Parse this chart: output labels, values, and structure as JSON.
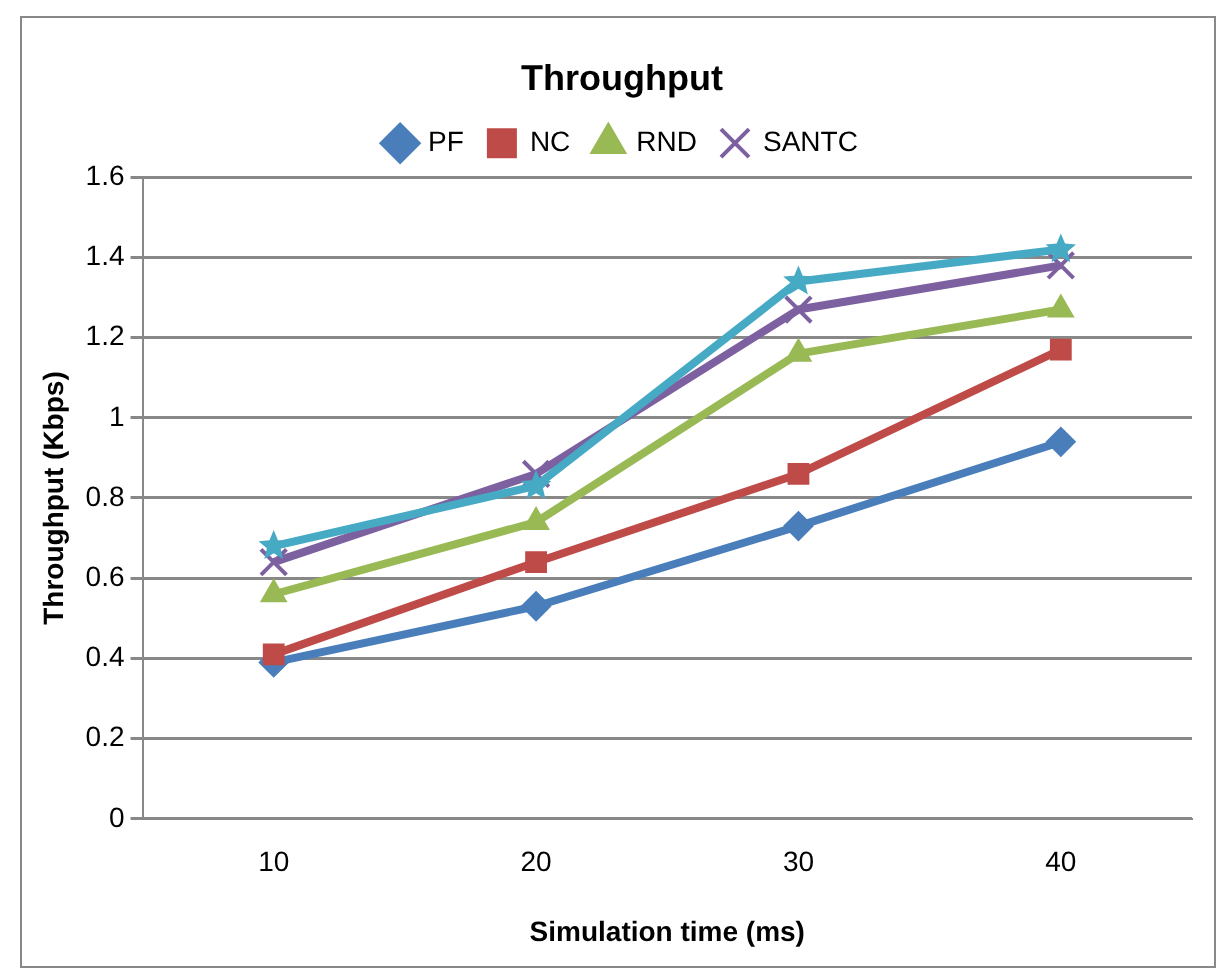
{
  "chart_data": {
    "type": "line",
    "title": "Throughput",
    "xlabel": "Simulation time (ms)",
    "ylabel": "Throughput (Kbps)",
    "categories": [
      "10",
      "20",
      "30",
      "40"
    ],
    "series": [
      {
        "name": "PF",
        "color": "#4a7ebb",
        "marker": "diamond",
        "values": [
          0.39,
          0.53,
          0.73,
          0.94
        ]
      },
      {
        "name": "NC",
        "color": "#be4b48",
        "marker": "square",
        "values": [
          0.41,
          0.64,
          0.86,
          1.17
        ]
      },
      {
        "name": "RND",
        "color": "#98b954",
        "marker": "triangle",
        "values": [
          0.56,
          0.74,
          1.16,
          1.27
        ]
      },
      {
        "name": "SANTC",
        "color": "#7d60a0",
        "marker": "cross",
        "values": [
          0.64,
          0.86,
          1.27,
          1.38
        ]
      },
      {
        "color": "#46aac5",
        "marker": "star",
        "values": [
          0.68,
          0.83,
          1.34,
          1.42
        ]
      }
    ],
    "ylim": [
      0,
      1.6
    ],
    "yticks": [
      0,
      0.2,
      0.4,
      0.6,
      0.8,
      1,
      1.2,
      1.4,
      1.6
    ],
    "grid": "y",
    "legend": "top",
    "line_style": "solid"
  }
}
